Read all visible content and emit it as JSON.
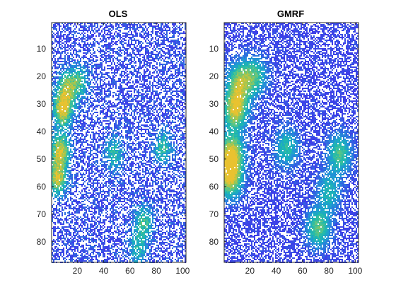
{
  "chart_data": [
    {
      "type": "heatmap",
      "title": "OLS",
      "xlabel": "",
      "ylabel": "",
      "xlim": [
        0.5,
        102.5
      ],
      "ylim": [
        0.5,
        87.5
      ],
      "y_direction": "reversed",
      "x_ticks": [
        20,
        40,
        60,
        80,
        100
      ],
      "x_tick_labels": [
        "20",
        "40",
        "60",
        "80",
        "100"
      ],
      "y_ticks": [
        10,
        20,
        30,
        40,
        50,
        60,
        70,
        80
      ],
      "y_tick_labels": [
        "10",
        "20",
        "30",
        "40",
        "50",
        "60",
        "70",
        "80"
      ],
      "grid": false,
      "colormap": [
        "#3e3ee8",
        "#2f6ee0",
        "#1f9ad4",
        "#1cb8b0",
        "#55c48a",
        "#a5c64e",
        "#e9c230"
      ],
      "missing_color": "#ffffff",
      "hotspots": [
        {
          "x": 9,
          "y": 32,
          "value": 1.0
        },
        {
          "x": 7,
          "y": 47,
          "value": 0.95
        },
        {
          "x": 5,
          "y": 57,
          "value": 0.9
        },
        {
          "x": 12,
          "y": 24,
          "value": 0.7
        },
        {
          "x": 22,
          "y": 22,
          "value": 0.55
        },
        {
          "x": 48,
          "y": 48,
          "value": 0.5
        },
        {
          "x": 85,
          "y": 46,
          "value": 0.55
        },
        {
          "x": 70,
          "y": 73,
          "value": 0.6
        },
        {
          "x": 66,
          "y": 83,
          "value": 0.45
        }
      ]
    },
    {
      "type": "heatmap",
      "title": "GMRF",
      "xlabel": "",
      "ylabel": "",
      "xlim": [
        0.5,
        102.5
      ],
      "ylim": [
        0.5,
        87.5
      ],
      "y_direction": "reversed",
      "x_ticks": [
        20,
        40,
        60,
        80,
        100
      ],
      "x_tick_labels": [
        "20",
        "40",
        "60",
        "80",
        "100"
      ],
      "y_ticks": [
        10,
        20,
        30,
        40,
        50,
        60,
        70,
        80
      ],
      "y_tick_labels": [
        "10",
        "20",
        "30",
        "40",
        "50",
        "60",
        "70",
        "80"
      ],
      "grid": false,
      "colormap": [
        "#3e3ee8",
        "#2f6ee0",
        "#1f9ad4",
        "#1cb8b0",
        "#55c48a",
        "#a5c64e",
        "#e9c230"
      ],
      "missing_color": "#ffffff",
      "hotspots": [
        {
          "x": 9,
          "y": 32,
          "value": 1.0
        },
        {
          "x": 6,
          "y": 48,
          "value": 1.0
        },
        {
          "x": 5,
          "y": 57,
          "value": 0.95
        },
        {
          "x": 12,
          "y": 22,
          "value": 0.75
        },
        {
          "x": 24,
          "y": 20,
          "value": 0.6
        },
        {
          "x": 48,
          "y": 46,
          "value": 0.55
        },
        {
          "x": 88,
          "y": 48,
          "value": 0.65
        },
        {
          "x": 72,
          "y": 75,
          "value": 0.7
        },
        {
          "x": 80,
          "y": 62,
          "value": 0.5
        }
      ]
    }
  ]
}
